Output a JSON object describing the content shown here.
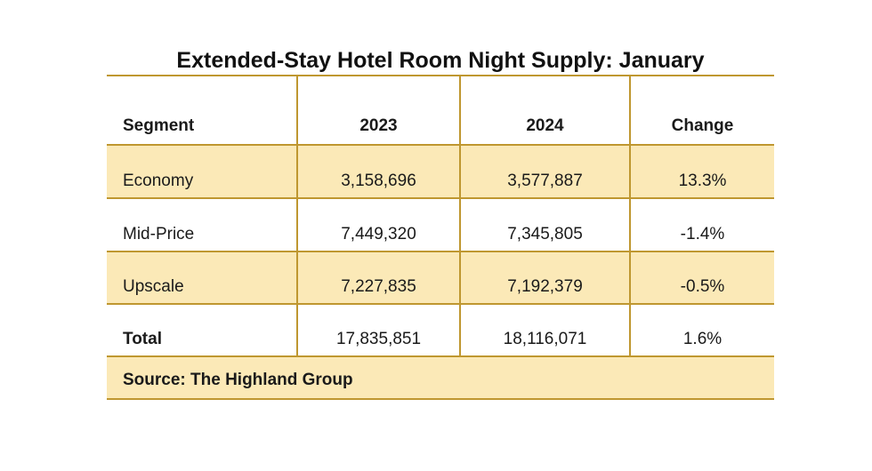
{
  "title": "Extended-Stay Hotel Room Night Supply: January",
  "table": {
    "columns": [
      "Segment",
      "2023",
      "2024",
      "Change"
    ],
    "rows": [
      {
        "segment": "Economy",
        "y2023": "3,158,696",
        "y2024": "3,577,887",
        "change": "13.3%"
      },
      {
        "segment": "Mid-Price",
        "y2023": "7,449,320",
        "y2024": "7,345,805",
        "change": "-1.4%"
      },
      {
        "segment": "Upscale",
        "y2023": "7,227,835",
        "y2024": "7,192,379",
        "change": "-0.5%"
      },
      {
        "segment": "Total",
        "y2023": "17,835,851",
        "y2024": "18,116,071",
        "change": "1.6%"
      }
    ],
    "source": "Source: The Highland Group"
  },
  "colors": {
    "row_highlight": "#FBE9B7",
    "border": "#BF9730",
    "text": "#1A1A1A",
    "background": "#FFFFFF"
  },
  "chart_data": {
    "type": "table",
    "title": "Extended-Stay Hotel Room Night Supply: January",
    "columns": [
      "Segment",
      "2023",
      "2024",
      "Change"
    ],
    "rows": [
      [
        "Economy",
        3158696,
        3577887,
        "13.3%"
      ],
      [
        "Mid-Price",
        7449320,
        7345805,
        "-1.4%"
      ],
      [
        "Upscale",
        7227835,
        7192379,
        "-0.5%"
      ],
      [
        "Total",
        17835851,
        18116071,
        "1.6%"
      ]
    ],
    "source": "The Highland Group"
  }
}
